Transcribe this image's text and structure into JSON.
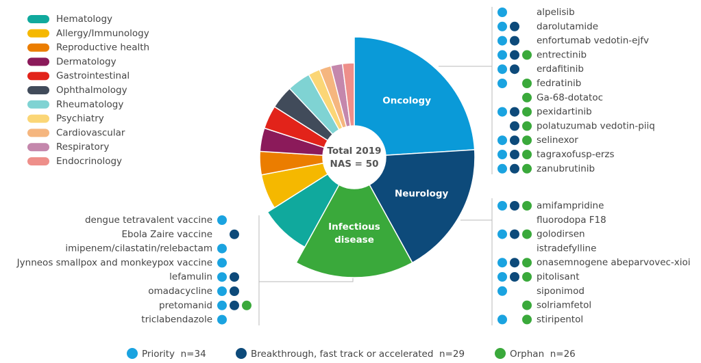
{
  "center_text": [
    "Total 2019",
    "NAS = 50"
  ],
  "chart_data": {
    "type": "pie",
    "categories": [
      "Oncology",
      "Neurology",
      "Infectious disease",
      "Hematology",
      "Allergy/Immunology",
      "Reproductive health",
      "Dermatology",
      "Gastrointestinal",
      "Ophthalmology",
      "Rheumatology",
      "Psychiatry",
      "Cardiovascular",
      "Respiratory",
      "Endocrinology"
    ],
    "values": [
      12,
      9,
      8,
      4,
      3,
      2,
      2,
      2,
      2,
      2,
      1,
      1,
      1,
      1
    ],
    "colors": [
      "#0a9ad8",
      "#0d4a7a",
      "#3aa93b",
      "#10a99d",
      "#f5b800",
      "#eb7d00",
      "#8b1a5a",
      "#e2231a",
      "#414b5a",
      "#7fd3d3",
      "#fbd676",
      "#f5b67f",
      "#c487ac",
      "#ee8f8a"
    ]
  },
  "designations": [
    {
      "label": "Priority  n=34",
      "color": "#1aa3e0"
    },
    {
      "label": "Breakthrough, fast track or accelerated  n=29",
      "color": "#0d4a7a"
    },
    {
      "label": "Orphan  n=26",
      "color": "#3aa93b"
    }
  ],
  "drug_lists": [
    {
      "drugs": [
        {
          "name": "alpelisib",
          "flags": [
            true,
            false,
            false
          ]
        },
        {
          "name": "darolutamide",
          "flags": [
            true,
            true,
            false
          ]
        },
        {
          "name": "enfortumab vedotin-ejfv",
          "flags": [
            true,
            true,
            false
          ]
        },
        {
          "name": "entrectinib",
          "flags": [
            true,
            true,
            true
          ]
        },
        {
          "name": "erdafitinib",
          "flags": [
            true,
            true,
            false
          ]
        },
        {
          "name": "fedratinib",
          "flags": [
            true,
            false,
            true
          ]
        },
        {
          "name": "Ga-68-dotatoc",
          "flags": [
            false,
            false,
            true
          ]
        },
        {
          "name": "pexidartinib",
          "flags": [
            true,
            true,
            true
          ]
        },
        {
          "name": "polatuzumab vedotin-piiq",
          "flags": [
            false,
            true,
            true
          ]
        },
        {
          "name": "selinexor",
          "flags": [
            true,
            true,
            true
          ]
        },
        {
          "name": "tagraxofusp-erzs",
          "flags": [
            true,
            true,
            true
          ]
        },
        {
          "name": "zanubrutinib",
          "flags": [
            true,
            true,
            true
          ]
        }
      ]
    },
    {
      "drugs": [
        {
          "name": "amifampridine",
          "flags": [
            true,
            true,
            true
          ]
        },
        {
          "name": "fluorodopa F18",
          "flags": [
            false,
            false,
            false
          ]
        },
        {
          "name": "golodirsen",
          "flags": [
            true,
            true,
            true
          ]
        },
        {
          "name": "istradefylline",
          "flags": [
            false,
            false,
            false
          ]
        },
        {
          "name": "onasemnogene abeparvovec-xioi",
          "flags": [
            true,
            true,
            true
          ]
        },
        {
          "name": "pitolisant",
          "flags": [
            true,
            true,
            true
          ]
        },
        {
          "name": "siponimod",
          "flags": [
            true,
            false,
            false
          ]
        },
        {
          "name": "solriamfetol",
          "flags": [
            false,
            false,
            true
          ]
        },
        {
          "name": "stiripentol",
          "flags": [
            true,
            false,
            true
          ]
        }
      ]
    },
    {
      "drugs": [
        {
          "name": "dengue tetravalent vaccine",
          "flags": [
            true,
            false,
            false
          ]
        },
        {
          "name": "Ebola Zaire vaccine",
          "flags": [
            false,
            true,
            false
          ]
        },
        {
          "name": "imipenem/cilastatin/relebactam",
          "flags": [
            true,
            false,
            false
          ]
        },
        {
          "name": "Jynneos smallpox and monkeypox vaccine",
          "flags": [
            true,
            false,
            false
          ]
        },
        {
          "name": "lefamulin",
          "flags": [
            true,
            true,
            false
          ]
        },
        {
          "name": "omadacycline",
          "flags": [
            true,
            true,
            false
          ]
        },
        {
          "name": "pretomanid",
          "flags": [
            true,
            true,
            true
          ]
        },
        {
          "name": "triclabendazole",
          "flags": [
            true,
            false,
            false
          ]
        }
      ]
    }
  ]
}
